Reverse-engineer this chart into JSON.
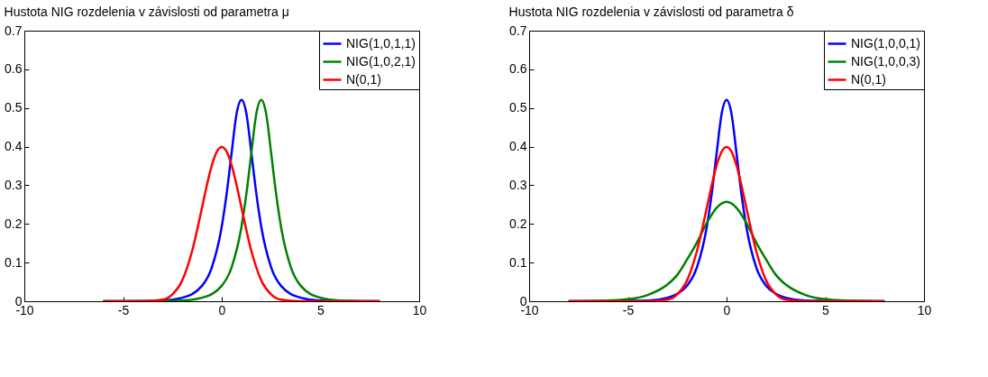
{
  "chart_data": [
    {
      "type": "line",
      "title": "Hustota NIG rozdelenia v závislosti od parametra μ",
      "xlim": [
        -10,
        10
      ],
      "xticks": [
        -10,
        -5,
        0,
        5,
        10
      ],
      "ylim": [
        0,
        0.7
      ],
      "yticks": [
        0,
        0.1,
        0.2,
        0.3,
        0.4,
        0.5,
        0.6,
        0.7
      ],
      "legend": "top right",
      "line_style": "solid",
      "series": [
        {
          "name": "NIG(1,0,1,1)",
          "color": "#0000ff",
          "x": [
            -6,
            -3,
            -2,
            -1,
            -0.5,
            0,
            0.25,
            0.5,
            0.75,
            1,
            1.25,
            1.5,
            1.75,
            2,
            2.5,
            3,
            4,
            5,
            8
          ],
          "values": [
            0,
            0.002,
            0.009,
            0.04,
            0.088,
            0.193,
            0.279,
            0.384,
            0.485,
            0.521,
            0.485,
            0.384,
            0.279,
            0.193,
            0.088,
            0.04,
            0.009,
            0.002,
            0
          ]
        },
        {
          "name": "NIG(1,0,2,1)",
          "color": "#008000",
          "x": [
            -6,
            -2,
            -1,
            0,
            0.5,
            1,
            1.25,
            1.5,
            1.75,
            2,
            2.25,
            2.5,
            2.75,
            3,
            3.5,
            4,
            5,
            6,
            8
          ],
          "values": [
            0,
            0.002,
            0.009,
            0.04,
            0.088,
            0.193,
            0.279,
            0.384,
            0.485,
            0.521,
            0.485,
            0.384,
            0.279,
            0.193,
            0.088,
            0.04,
            0.009,
            0.002,
            0
          ]
        },
        {
          "name": "N(0,1)",
          "color": "#ff0000",
          "x": [
            -6,
            -4,
            -3,
            -2.5,
            -2,
            -1.5,
            -1,
            -0.75,
            -0.5,
            -0.25,
            0,
            0.25,
            0.5,
            0.75,
            1,
            1.5,
            2,
            2.5,
            3,
            4,
            8
          ],
          "values": [
            0,
            0,
            0.004,
            0.018,
            0.054,
            0.13,
            0.242,
            0.301,
            0.352,
            0.387,
            0.399,
            0.387,
            0.352,
            0.301,
            0.242,
            0.13,
            0.054,
            0.018,
            0.004,
            0,
            0
          ]
        }
      ]
    },
    {
      "type": "line",
      "title": "Hustota NIG rozdelenia v závislosti od parametra δ",
      "xlim": [
        -10,
        10
      ],
      "xticks": [
        -10,
        -5,
        0,
        5,
        10
      ],
      "ylim": [
        0,
        0.7
      ],
      "yticks": [
        0,
        0.1,
        0.2,
        0.3,
        0.4,
        0.5,
        0.6,
        0.7
      ],
      "legend": "top right",
      "line_style": "solid",
      "series": [
        {
          "name": "NIG(1,0,0,1)",
          "color": "#0000ff",
          "x": [
            -8,
            -5,
            -4,
            -3,
            -2.5,
            -2,
            -1.5,
            -1,
            -0.75,
            -0.5,
            -0.25,
            0,
            0.25,
            0.5,
            0.75,
            1,
            1.5,
            2,
            2.5,
            3,
            4,
            5,
            8
          ],
          "values": [
            0,
            0.001,
            0.002,
            0.009,
            0.019,
            0.04,
            0.088,
            0.193,
            0.279,
            0.384,
            0.485,
            0.521,
            0.485,
            0.384,
            0.279,
            0.193,
            0.088,
            0.04,
            0.019,
            0.009,
            0.002,
            0.001,
            0
          ]
        },
        {
          "name": "NIG(1,0,0,3)",
          "color": "#008000",
          "x": [
            -8,
            -6,
            -5,
            -4,
            -3,
            -2.5,
            -2,
            -1.5,
            -1,
            -0.5,
            0,
            0.5,
            1,
            1.5,
            2,
            2.5,
            3,
            4,
            5,
            6,
            8
          ],
          "values": [
            0,
            0.002,
            0.005,
            0.016,
            0.043,
            0.068,
            0.108,
            0.152,
            0.203,
            0.242,
            0.257,
            0.242,
            0.203,
            0.152,
            0.108,
            0.068,
            0.043,
            0.016,
            0.005,
            0.002,
            0
          ]
        },
        {
          "name": "N(0,1)",
          "color": "#ff0000",
          "x": [
            -8,
            -4,
            -3,
            -2.5,
            -2,
            -1.5,
            -1,
            -0.75,
            -0.5,
            -0.25,
            0,
            0.25,
            0.5,
            0.75,
            1,
            1.5,
            2,
            2.5,
            3,
            4,
            8
          ],
          "values": [
            0,
            0,
            0.004,
            0.018,
            0.054,
            0.13,
            0.242,
            0.301,
            0.352,
            0.387,
            0.399,
            0.387,
            0.352,
            0.301,
            0.242,
            0.13,
            0.054,
            0.018,
            0.004,
            0,
            0
          ]
        }
      ]
    }
  ]
}
